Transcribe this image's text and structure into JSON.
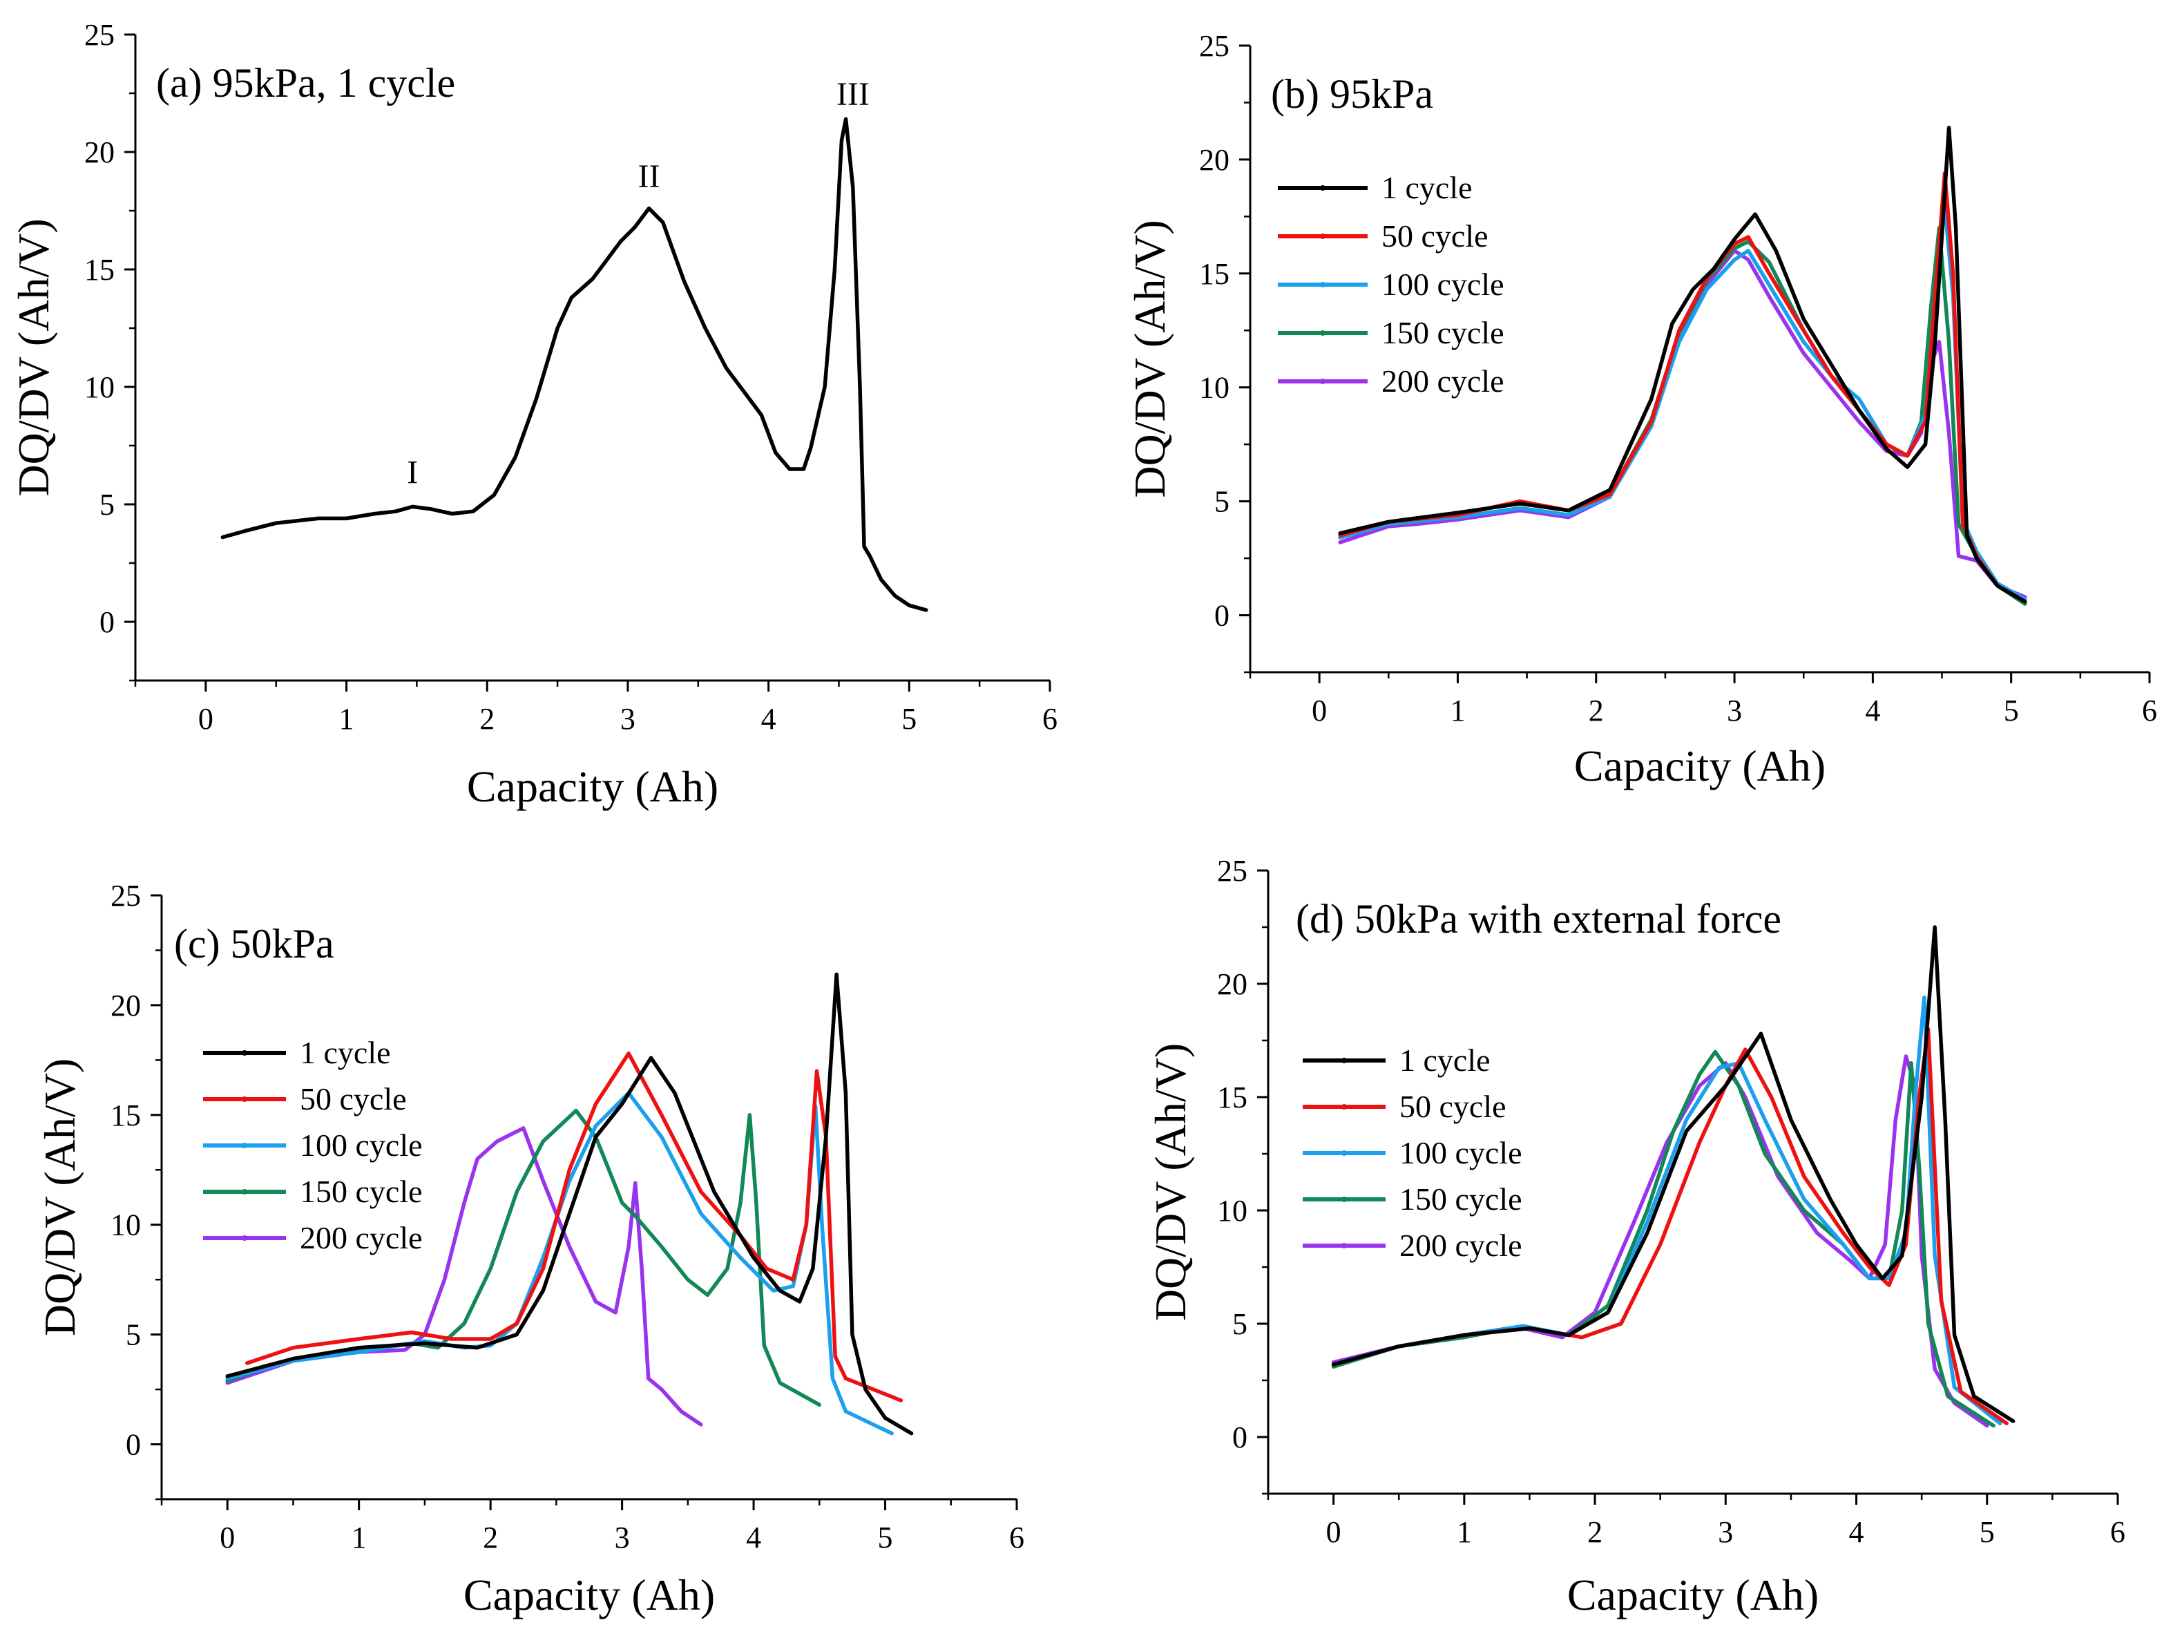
{
  "chart_data": [
    {
      "type": "line",
      "title": "(a) 95kPa, 1 cycle",
      "xlabel": "Capacity (Ah)",
      "ylabel": "DQ/DV (Ah/V)",
      "xlim": [
        -0.5,
        6
      ],
      "ylim": [
        -2.5,
        25
      ],
      "xticks": [
        "0",
        "1",
        "2",
        "3",
        "4",
        "5",
        "6"
      ],
      "yticks": [
        "0",
        "5",
        "10",
        "15",
        "20",
        "25"
      ],
      "legend": null,
      "annotations": [
        {
          "text": "I",
          "x": 1.47,
          "y": 5.9
        },
        {
          "text": "II",
          "x": 3.15,
          "y": 18.5
        },
        {
          "text": "III",
          "x": 4.6,
          "y": 22.0
        }
      ],
      "series": [
        {
          "name": "1 cycle",
          "color": "#000000",
          "x": [
            0.12,
            0.3,
            0.5,
            0.8,
            1.0,
            1.2,
            1.35,
            1.47,
            1.6,
            1.75,
            1.9,
            2.05,
            2.2,
            2.35,
            2.5,
            2.6,
            2.75,
            2.85,
            2.95,
            3.05,
            3.15,
            3.25,
            3.4,
            3.55,
            3.7,
            3.85,
            3.95,
            4.05,
            4.15,
            4.25,
            4.3,
            4.4,
            4.47,
            4.52,
            4.55,
            4.6,
            4.65,
            4.68,
            4.72,
            4.8,
            4.9,
            5.0,
            5.12
          ],
          "y": [
            3.6,
            3.9,
            4.2,
            4.4,
            4.4,
            4.6,
            4.7,
            4.9,
            4.8,
            4.6,
            4.7,
            5.4,
            7.0,
            9.5,
            12.5,
            13.8,
            14.6,
            15.4,
            16.2,
            16.8,
            17.6,
            17.0,
            14.5,
            12.5,
            10.8,
            9.6,
            8.8,
            7.2,
            6.5,
            6.5,
            7.4,
            10.0,
            15.0,
            20.5,
            21.4,
            18.5,
            10.0,
            3.2,
            2.8,
            1.8,
            1.1,
            0.7,
            0.5
          ]
        }
      ]
    },
    {
      "type": "line",
      "title": "(b) 95kPa",
      "xlabel": "Capacity (Ah)",
      "ylabel": "DQ/DV (Ah/V)",
      "xlim": [
        -0.5,
        6
      ],
      "ylim": [
        -2.5,
        25
      ],
      "xticks": [
        "0",
        "1",
        "2",
        "3",
        "4",
        "5",
        "6"
      ],
      "yticks": [
        "0",
        "5",
        "10",
        "15",
        "20",
        "25"
      ],
      "legend": {
        "position": "upper-left"
      },
      "series": [
        {
          "name": "1 cycle",
          "color": "#000000",
          "x": [
            0.15,
            0.5,
            1.0,
            1.45,
            1.8,
            2.1,
            2.4,
            2.55,
            2.7,
            2.85,
            3.0,
            3.15,
            3.3,
            3.5,
            3.7,
            3.9,
            4.1,
            4.25,
            4.38,
            4.45,
            4.55,
            4.6,
            4.68,
            4.75,
            4.9,
            5.1
          ],
          "y": [
            3.6,
            4.1,
            4.5,
            4.9,
            4.6,
            5.5,
            9.5,
            12.8,
            14.3,
            15.2,
            16.5,
            17.6,
            16.0,
            13.0,
            11.0,
            9.0,
            7.3,
            6.5,
            7.5,
            12.0,
            21.4,
            17.0,
            3.5,
            2.5,
            1.3,
            0.6
          ]
        },
        {
          "name": "50 cycle",
          "color": "#ee1111",
          "x": [
            0.15,
            0.5,
            1.0,
            1.45,
            1.8,
            2.1,
            2.4,
            2.6,
            2.8,
            3.0,
            3.1,
            3.25,
            3.5,
            3.7,
            3.9,
            4.1,
            4.25,
            4.38,
            4.45,
            4.52,
            4.58,
            4.65,
            4.75,
            4.9,
            5.1
          ],
          "y": [
            3.5,
            4.1,
            4.4,
            5.0,
            4.6,
            5.3,
            8.5,
            12.5,
            14.8,
            16.3,
            16.6,
            15.0,
            12.5,
            10.5,
            9.0,
            7.5,
            7.0,
            8.5,
            14.0,
            19.4,
            15.0,
            4.0,
            2.6,
            1.3,
            0.6
          ]
        },
        {
          "name": "100 cycle",
          "color": "#1aa0ee",
          "x": [
            0.15,
            0.5,
            1.0,
            1.45,
            1.8,
            2.1,
            2.4,
            2.6,
            2.8,
            3.0,
            3.1,
            3.25,
            3.5,
            3.7,
            3.9,
            4.1,
            4.25,
            4.38,
            4.45,
            4.52,
            4.58,
            4.65,
            4.75,
            4.9,
            5.1
          ],
          "y": [
            3.4,
            4.0,
            4.3,
            4.7,
            4.4,
            5.2,
            8.3,
            12.0,
            14.3,
            15.6,
            16.0,
            14.5,
            12.0,
            10.5,
            9.5,
            7.5,
            7.0,
            8.8,
            14.0,
            18.0,
            14.0,
            4.2,
            2.8,
            1.4,
            0.7
          ]
        },
        {
          "name": "150 cycle",
          "color": "#118855",
          "x": [
            0.15,
            0.5,
            1.0,
            1.45,
            1.8,
            2.1,
            2.4,
            2.6,
            2.8,
            3.0,
            3.1,
            3.25,
            3.5,
            3.7,
            3.9,
            4.1,
            4.25,
            4.35,
            4.42,
            4.48,
            4.55,
            4.62,
            4.75,
            4.9,
            5.1
          ],
          "y": [
            3.5,
            4.0,
            4.3,
            4.7,
            4.4,
            5.3,
            8.6,
            12.4,
            14.7,
            16.1,
            16.4,
            15.5,
            12.5,
            10.5,
            9.0,
            7.5,
            7.0,
            8.5,
            13.5,
            17.0,
            12.0,
            4.0,
            2.6,
            1.3,
            0.5
          ]
        },
        {
          "name": "200 cycle",
          "color": "#9933ee",
          "x": [
            0.15,
            0.5,
            0.7,
            1.0,
            1.45,
            1.8,
            2.1,
            2.4,
            2.6,
            2.8,
            3.0,
            3.1,
            3.25,
            3.5,
            3.7,
            3.9,
            4.1,
            4.25,
            4.35,
            4.42,
            4.48,
            4.55,
            4.62,
            4.75,
            4.9,
            5.1
          ],
          "y": [
            3.2,
            3.9,
            4.0,
            4.2,
            4.6,
            4.3,
            5.2,
            8.4,
            12.0,
            14.5,
            16.0,
            15.6,
            14.0,
            11.5,
            10.0,
            8.5,
            7.2,
            7.0,
            8.0,
            11.0,
            12.0,
            8.0,
            2.6,
            2.4,
            1.3,
            0.8
          ]
        }
      ]
    },
    {
      "type": "line",
      "title": "(c) 50kPa",
      "xlabel": "Capacity (Ah)",
      "ylabel": "DQ/DV (Ah/V)",
      "xlim": [
        -0.5,
        6
      ],
      "ylim": [
        -2.5,
        25
      ],
      "xticks": [
        "0",
        "1",
        "2",
        "3",
        "4",
        "5",
        "6"
      ],
      "yticks": [
        "0",
        "5",
        "10",
        "15",
        "20",
        "25"
      ],
      "legend": {
        "position": "middle-left"
      },
      "series": [
        {
          "name": "1 cycle",
          "color": "#000000",
          "x": [
            0.0,
            0.5,
            1.0,
            1.5,
            1.9,
            2.2,
            2.4,
            2.6,
            2.8,
            3.0,
            3.22,
            3.4,
            3.7,
            4.0,
            4.2,
            4.35,
            4.45,
            4.55,
            4.63,
            4.7,
            4.75,
            4.85,
            5.0,
            5.2
          ],
          "y": [
            3.1,
            3.9,
            4.4,
            4.6,
            4.4,
            5.0,
            7.0,
            10.5,
            14.0,
            15.5,
            17.6,
            16.0,
            11.5,
            8.5,
            7.0,
            6.5,
            8.0,
            14.0,
            21.4,
            16.0,
            5.0,
            2.5,
            1.2,
            0.5
          ]
        },
        {
          "name": "50 cycle",
          "color": "#ee1111",
          "x": [
            0.15,
            0.5,
            1.0,
            1.4,
            1.7,
            2.0,
            2.2,
            2.4,
            2.6,
            2.8,
            3.05,
            3.3,
            3.6,
            3.9,
            4.1,
            4.3,
            4.4,
            4.48,
            4.55,
            4.62,
            4.7,
            5.12
          ],
          "y": [
            3.7,
            4.4,
            4.8,
            5.1,
            4.8,
            4.8,
            5.5,
            8.0,
            12.5,
            15.5,
            17.8,
            15.0,
            11.5,
            9.5,
            8.0,
            7.5,
            10.0,
            17.0,
            14.0,
            4.0,
            3.0,
            2.0
          ]
        },
        {
          "name": "100 cycle",
          "color": "#1aa0ee",
          "x": [
            0.0,
            0.5,
            1.0,
            1.5,
            1.8,
            2.0,
            2.2,
            2.4,
            2.6,
            2.8,
            3.05,
            3.3,
            3.6,
            3.9,
            4.15,
            4.3,
            4.4,
            4.47,
            4.52,
            4.6,
            4.7,
            5.05
          ],
          "y": [
            3.0,
            3.8,
            4.2,
            4.7,
            4.4,
            4.5,
            5.5,
            8.5,
            12.0,
            14.5,
            16.0,
            14.0,
            10.5,
            8.5,
            7.0,
            7.2,
            10.0,
            15.4,
            10.0,
            3.0,
            1.5,
            0.5
          ]
        },
        {
          "name": "150 cycle",
          "color": "#118855",
          "x": [
            0.0,
            0.5,
            1.0,
            1.4,
            1.6,
            1.8,
            2.0,
            2.2,
            2.4,
            2.65,
            2.8,
            3.0,
            3.1,
            3.3,
            3.5,
            3.65,
            3.8,
            3.9,
            3.97,
            4.02,
            4.08,
            4.2,
            4.5
          ],
          "y": [
            2.9,
            3.9,
            4.3,
            4.6,
            4.4,
            5.5,
            8.0,
            11.5,
            13.8,
            15.2,
            14.0,
            11.0,
            10.4,
            9.0,
            7.5,
            6.8,
            8.0,
            11.0,
            15.0,
            11.0,
            4.5,
            2.8,
            1.8
          ]
        },
        {
          "name": "200 cycle",
          "color": "#9933ee",
          "x": [
            0.0,
            0.5,
            1.0,
            1.35,
            1.5,
            1.65,
            1.8,
            1.9,
            2.05,
            2.25,
            2.4,
            2.6,
            2.8,
            2.95,
            3.05,
            3.1,
            3.15,
            3.2,
            3.3,
            3.45,
            3.6
          ],
          "y": [
            2.8,
            3.8,
            4.2,
            4.3,
            5.0,
            7.5,
            11.0,
            13.0,
            13.8,
            14.4,
            12.0,
            9.0,
            6.5,
            6.0,
            9.0,
            11.9,
            8.0,
            3.0,
            2.5,
            1.5,
            0.9
          ]
        }
      ]
    },
    {
      "type": "line",
      "title": "(d) 50kPa with external force",
      "xlabel": "Capacity (Ah)",
      "ylabel": "DQ/DV (Ah/V)",
      "xlim": [
        -0.5,
        6
      ],
      "ylim": [
        -2.5,
        25
      ],
      "xticks": [
        "0",
        "1",
        "2",
        "3",
        "4",
        "5",
        "6"
      ],
      "yticks": [
        "0",
        "5",
        "10",
        "15",
        "20",
        "25"
      ],
      "legend": {
        "position": "middle-left"
      },
      "series": [
        {
          "name": "1 cycle",
          "color": "#000000",
          "x": [
            0.0,
            0.5,
            1.0,
            1.5,
            1.8,
            2.1,
            2.4,
            2.7,
            3.0,
            3.27,
            3.5,
            3.8,
            4.0,
            4.2,
            4.35,
            4.5,
            4.6,
            4.68,
            4.75,
            4.9,
            5.2
          ],
          "y": [
            3.2,
            4.0,
            4.5,
            4.8,
            4.5,
            5.5,
            9.0,
            13.5,
            15.5,
            17.8,
            14.0,
            10.5,
            8.5,
            7.0,
            8.0,
            15.0,
            22.5,
            14.0,
            4.5,
            1.8,
            0.7
          ]
        },
        {
          "name": "50 cycle",
          "color": "#ee1111",
          "x": [
            0.0,
            0.5,
            1.0,
            1.5,
            1.9,
            2.2,
            2.5,
            2.8,
            3.0,
            3.15,
            3.35,
            3.6,
            3.9,
            4.1,
            4.25,
            4.38,
            4.48,
            4.55,
            4.65,
            4.8,
            5.15
          ],
          "y": [
            3.2,
            4.0,
            4.5,
            4.8,
            4.4,
            5.0,
            8.5,
            13.0,
            15.5,
            17.1,
            15.0,
            11.5,
            9.0,
            7.5,
            6.7,
            8.5,
            15.0,
            18.0,
            6.0,
            2.0,
            0.6
          ]
        },
        {
          "name": "100 cycle",
          "color": "#1aa0ee",
          "x": [
            0.0,
            0.5,
            1.0,
            1.45,
            1.8,
            2.1,
            2.4,
            2.7,
            2.95,
            3.1,
            3.3,
            3.6,
            3.9,
            4.1,
            4.25,
            4.38,
            4.45,
            4.52,
            4.6,
            4.75,
            5.1
          ],
          "y": [
            3.2,
            4.0,
            4.5,
            4.9,
            4.5,
            5.5,
            9.5,
            14.0,
            16.3,
            16.5,
            14.0,
            10.5,
            8.5,
            7.0,
            7.0,
            9.0,
            15.0,
            19.4,
            8.0,
            2.2,
            0.6
          ]
        },
        {
          "name": "150 cycle",
          "color": "#118855",
          "x": [
            0.0,
            0.5,
            1.0,
            1.45,
            1.8,
            2.1,
            2.4,
            2.6,
            2.8,
            2.92,
            3.1,
            3.3,
            3.6,
            3.9,
            4.1,
            4.25,
            4.35,
            4.42,
            4.48,
            4.55,
            4.7,
            5.05
          ],
          "y": [
            3.1,
            4.0,
            4.4,
            4.9,
            4.5,
            5.8,
            10.0,
            13.5,
            16.0,
            17.0,
            15.5,
            12.5,
            10.0,
            8.5,
            7.0,
            7.0,
            10.0,
            16.5,
            12.0,
            5.0,
            1.8,
            0.5
          ]
        },
        {
          "name": "200 cycle",
          "color": "#9933ee",
          "x": [
            0.0,
            0.5,
            1.0,
            1.45,
            1.75,
            2.0,
            2.3,
            2.55,
            2.8,
            3.0,
            3.15,
            3.4,
            3.7,
            3.95,
            4.1,
            4.22,
            4.3,
            4.38,
            4.45,
            4.5,
            4.6,
            4.75,
            5.0
          ],
          "y": [
            3.3,
            4.0,
            4.5,
            4.8,
            4.4,
            5.5,
            9.5,
            13.0,
            15.5,
            16.5,
            15.0,
            11.5,
            9.0,
            7.8,
            7.0,
            8.5,
            14.0,
            16.8,
            15.5,
            8.0,
            3.0,
            1.5,
            0.5
          ]
        }
      ]
    }
  ]
}
